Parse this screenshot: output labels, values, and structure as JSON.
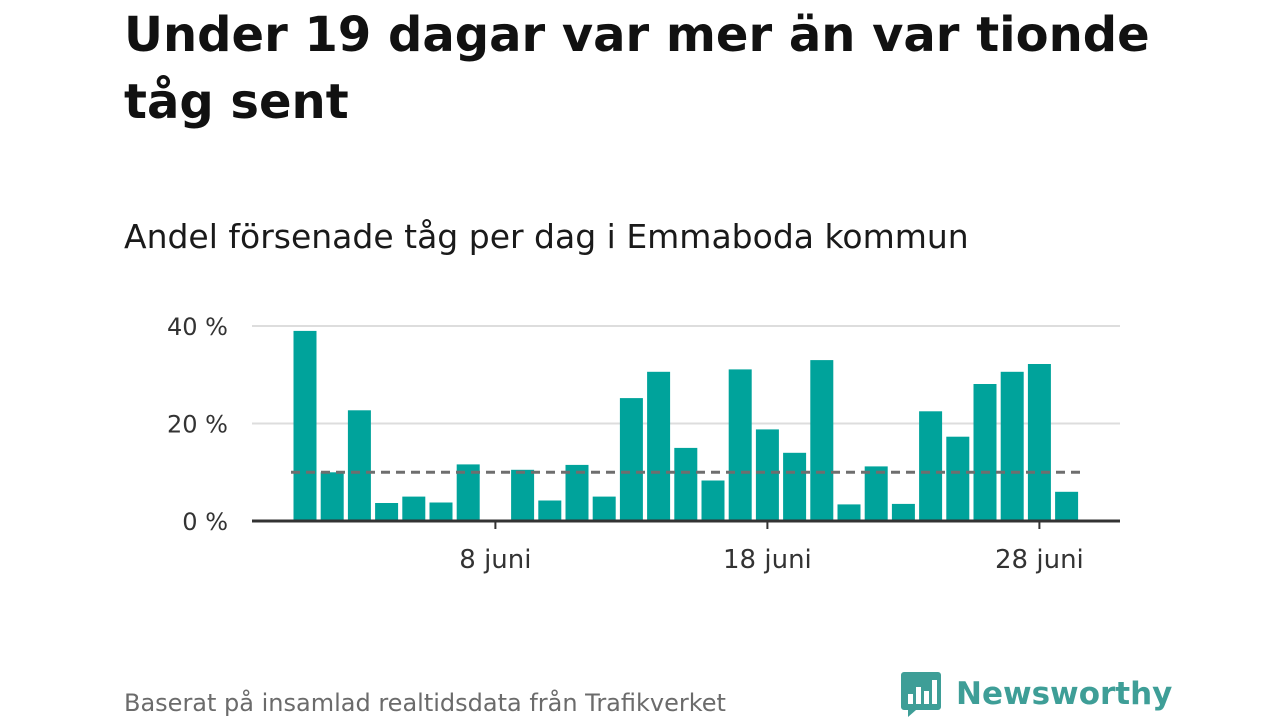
{
  "header": {
    "title": "Under 19 dagar var mer än var tionde tåg sent"
  },
  "chart_data": {
    "type": "bar",
    "title": "Andel försenade tåg per dag i Emmaboda kommun",
    "xlabel": "",
    "ylabel": "",
    "x_ticks": [
      {
        "day": 8,
        "label": "8 juni"
      },
      {
        "day": 18,
        "label": "18 juni"
      },
      {
        "day": 28,
        "label": "28 juni"
      }
    ],
    "y_ticks": [
      {
        "value": 0,
        "label": "0 %"
      },
      {
        "value": 20,
        "label": "20 %"
      },
      {
        "value": 40,
        "label": "40 %"
      }
    ],
    "ylim": [
      0,
      40
    ],
    "days": [
      1,
      2,
      3,
      4,
      5,
      6,
      7,
      8,
      9,
      10,
      11,
      12,
      13,
      14,
      15,
      16,
      17,
      18,
      19,
      20,
      21,
      22,
      23,
      24,
      25,
      26,
      27,
      28,
      29,
      30
    ],
    "values": [
      39,
      10,
      22.7,
      3.7,
      5,
      3.8,
      11.6,
      0,
      10.5,
      4.2,
      11.5,
      5,
      25.2,
      30.6,
      15,
      8.3,
      31.1,
      18.8,
      14,
      33,
      3.4,
      11.2,
      3.5,
      22.5,
      17.3,
      28.1,
      30.6,
      32.2,
      6,
      null
    ],
    "reference_line": {
      "value": 10,
      "style": "dashed"
    },
    "grid": true,
    "colors": {
      "bar": "#00a39b",
      "reference": "#6e6e6e",
      "grid": "#dddddd",
      "axis": "#333333"
    }
  },
  "footer": {
    "source": "Baserat på insamlad realtidsdata från Trafikverket",
    "brand_name": "Newsworthy",
    "brand_color": "#3e9e97",
    "logo_icon": "newsworthy-bar-chart-speech-bubble-icon"
  }
}
